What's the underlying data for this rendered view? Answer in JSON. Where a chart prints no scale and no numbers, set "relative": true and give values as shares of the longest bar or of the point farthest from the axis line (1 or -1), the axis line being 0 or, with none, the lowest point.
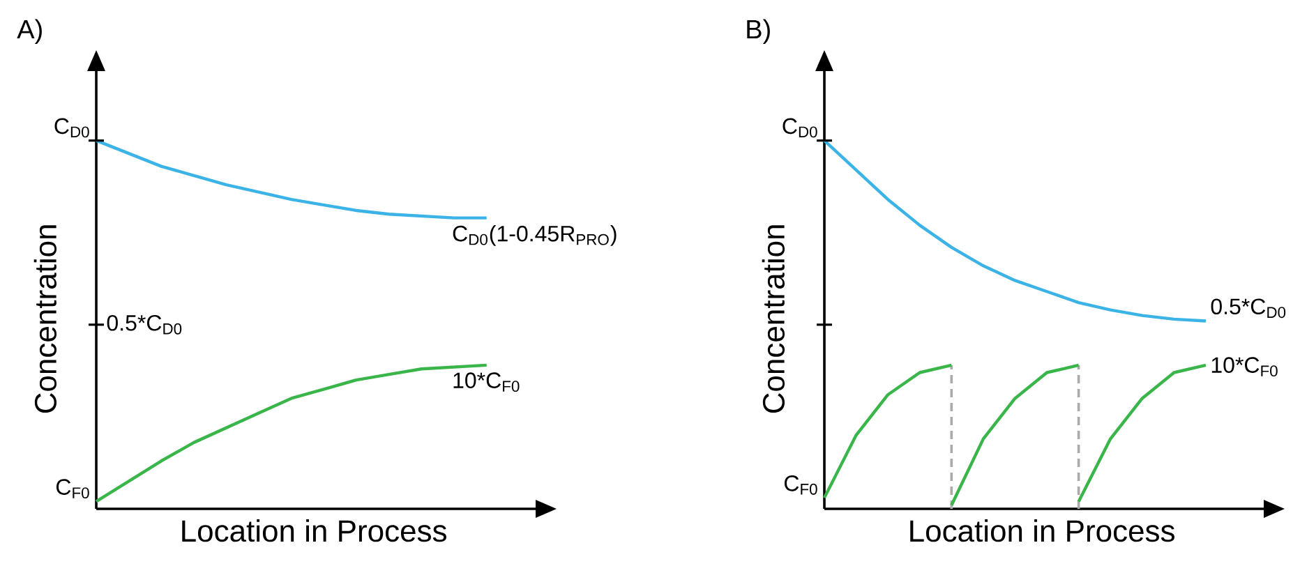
{
  "chart_data": [
    {
      "type": "line",
      "title": "A)",
      "xlabel": "Location in Process",
      "ylabel": "Concentration",
      "relative": true,
      "categories": [
        null,
        null,
        null,
        null,
        null,
        null,
        null,
        null,
        null,
        null,
        null,
        null,
        null
      ],
      "annotations": [
        "C$_{D0}$",
        "0.5*C$_{D0}$",
        "C$_{F0}$"
      ],
      "series": [
        {
          "name": "C$_{D0}$(1-0.45R$_{PRO}$)",
          "color": "#3bb3e6",
          "values": [
            1.0,
            0.965,
            0.93,
            0.905,
            0.88,
            0.86,
            0.84,
            0.825,
            0.81,
            0.8,
            0.795,
            0.79,
            0.79
          ]
        },
        {
          "name": "10*C$_{F0}$",
          "color": "#3ab54a",
          "values": [
            0.02,
            0.075,
            0.13,
            0.18,
            0.22,
            0.26,
            0.3,
            0.325,
            0.35,
            0.365,
            0.38,
            0.385,
            0.39
          ]
        }
      ]
    },
    {
      "type": "line",
      "title": "B)",
      "xlabel": "Location in Process",
      "ylabel": "Concentration",
      "relative": true,
      "categories": [
        null,
        null,
        null,
        null,
        null,
        null,
        null,
        null,
        null,
        null,
        null,
        null,
        null
      ],
      "annotations": [
        "C$_{D0}$",
        "C$_{F0}$"
      ],
      "series": [
        {
          "name": "0.5*C$_{D0}$",
          "color": "#3bb3e6",
          "values": [
            1.0,
            0.92,
            0.84,
            0.77,
            0.71,
            0.66,
            0.62,
            0.59,
            0.56,
            0.54,
            0.525,
            0.515,
            0.51
          ]
        },
        {
          "name": "10*C$_{F0}$",
          "color": "#3ab54a",
          "values": [
            null,
            null,
            null,
            null,
            null,
            null,
            null,
            null,
            0.02,
            0.19,
            0.3,
            0.37,
            0.39
          ]
        },
        {
          "color": "#3ab54a",
          "values": [
            0.03,
            0.2,
            0.31,
            0.37,
            0.39,
            null,
            null,
            null,
            null,
            null,
            null,
            null,
            null
          ]
        },
        {
          "color": "#3ab54a",
          "values": [
            null,
            null,
            null,
            null,
            0.01,
            0.19,
            0.3,
            0.37,
            0.39,
            null,
            null,
            null,
            null
          ]
        }
      ]
    }
  ]
}
